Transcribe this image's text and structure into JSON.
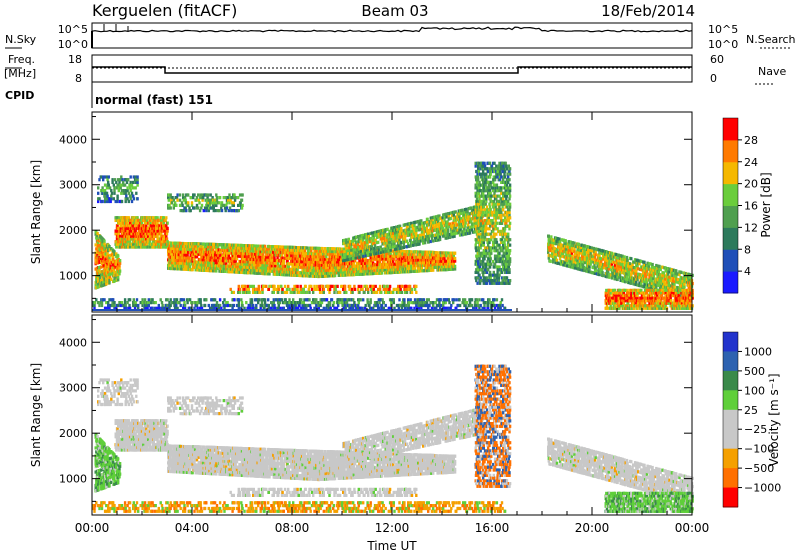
{
  "header": {
    "station": "Kerguelen (fitACF)",
    "beam": "Beam 03",
    "date": "18/Feb/2014"
  },
  "noise_panel": {
    "left_label": "N.Sky",
    "right_label": "N.Search",
    "tick_top": "10^5",
    "tick_bottom": "10^0"
  },
  "freq_panel": {
    "label_line1": "Freq.",
    "label_line2": "[MHz]",
    "right_label": "Nave",
    "left_ticks": [
      "18",
      "8"
    ],
    "right_ticks": [
      "60",
      "0"
    ]
  },
  "cpid": {
    "label": "CPID",
    "value": "normal (fast) 151"
  },
  "chart_data": [
    {
      "type": "heatmap",
      "name": "power",
      "ylabel": "Slant Range [km]",
      "xlabel": "Time UT",
      "x_ticks": [
        "00:00",
        "04:00",
        "08:00",
        "12:00",
        "16:00",
        "20:00",
        "00:00"
      ],
      "y_ticks": [
        "1000",
        "2000",
        "3000",
        "4000"
      ],
      "ylim": [
        200,
        4600
      ],
      "xlim_hours": [
        0,
        24
      ],
      "colorbar": {
        "label": "Power [dB]",
        "ticks": [
          "4",
          "8",
          "12",
          "16",
          "20",
          "24",
          "28"
        ],
        "colors": [
          "#1a1aff",
          "#1f4fb8",
          "#2d7a5c",
          "#4f9f4f",
          "#6acd3c",
          "#f5b800",
          "#ff7a00",
          "#ff0000"
        ]
      }
    },
    {
      "type": "heatmap",
      "name": "velocity",
      "ylabel": "Slant Range [km]",
      "xlabel": "Time UT",
      "x_ticks": [
        "00:00",
        "04:00",
        "08:00",
        "12:00",
        "16:00",
        "20:00",
        "00:00"
      ],
      "y_ticks": [
        "1000",
        "2000",
        "3000",
        "4000"
      ],
      "ylim": [
        200,
        4600
      ],
      "xlim_hours": [
        0,
        24
      ],
      "colorbar": {
        "label": "Velocity [m s⁻¹]",
        "ticks": [
          "1000",
          "500",
          "100",
          "25",
          "−25",
          "−100",
          "−500",
          "−1000"
        ],
        "colors": [
          "#2233cc",
          "#2d62b0",
          "#3a8a4a",
          "#5fcf3a",
          "#c8c8c8",
          "#c8c8c8",
          "#f5a000",
          "#ff7000",
          "#ff0000"
        ]
      }
    }
  ]
}
